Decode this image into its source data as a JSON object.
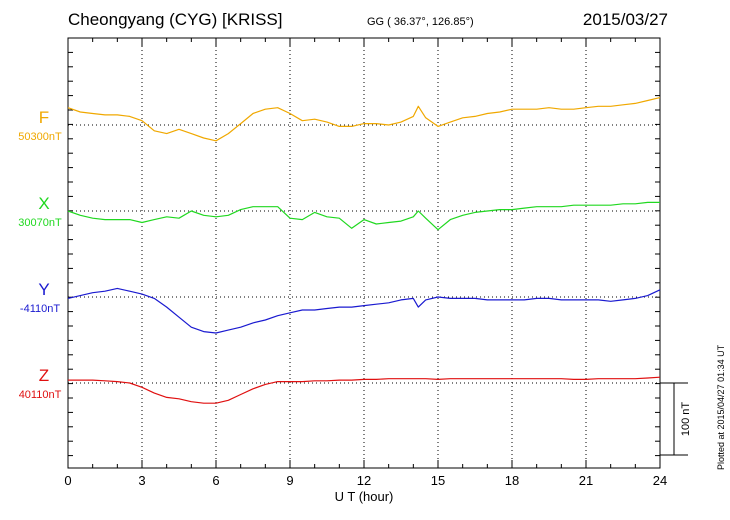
{
  "header": {
    "title": "Cheongyang (CYG)  [KRISS]",
    "coordinates": "GG ( 36.37°, 126.85°)",
    "date": "2015/03/27"
  },
  "footer": {
    "plotted_note": "Plotted at 2015/04/27 01:34 UT"
  },
  "colors": {
    "F": "#f0a800",
    "X": "#20d820",
    "Y": "#1a1ad0",
    "Z": "#e01010",
    "axis": "#000000",
    "grid": "#000000"
  },
  "chart_data": {
    "type": "line",
    "xlabel": "U T (hour)",
    "xlim": [
      0,
      24
    ],
    "xticks": [
      0,
      3,
      6,
      9,
      12,
      15,
      18,
      21,
      24
    ],
    "grid": true,
    "grid_style": "dotted",
    "scale_bar": {
      "label": "100 nT",
      "value_nT": 100
    },
    "series": [
      {
        "name": "F",
        "baseline_label": "50300nT",
        "baseline": 50300,
        "x": [
          0,
          0.5,
          1,
          1.5,
          2,
          2.5,
          3,
          3.5,
          4,
          4.5,
          5,
          5.5,
          6,
          6.5,
          7,
          7.5,
          8,
          8.5,
          9,
          9.5,
          10,
          10.5,
          11,
          11.5,
          12,
          12.5,
          13,
          13.5,
          14,
          14.2,
          14.5,
          15,
          15.5,
          16,
          16.5,
          17,
          17.5,
          18,
          18.5,
          19,
          19.5,
          20,
          20.5,
          21,
          21.5,
          22,
          22.5,
          23,
          23.5,
          24
        ],
        "values": [
          50324,
          50318,
          50316,
          50314,
          50314,
          50312,
          50306,
          50292,
          50288,
          50294,
          50288,
          50282,
          50278,
          50288,
          50302,
          50316,
          50322,
          50324,
          50316,
          50306,
          50308,
          50304,
          50298,
          50298,
          50302,
          50302,
          50300,
          50304,
          50312,
          50326,
          50310,
          50298,
          50304,
          50310,
          50312,
          50316,
          50318,
          50322,
          50322,
          50322,
          50324,
          50322,
          50322,
          50324,
          50326,
          50326,
          50328,
          50330,
          50334,
          50338
        ]
      },
      {
        "name": "X",
        "baseline_label": "30070nT",
        "baseline": 30070,
        "x": [
          0,
          0.5,
          1,
          1.5,
          2,
          2.5,
          3,
          3.5,
          4,
          4.5,
          5,
          5.5,
          6,
          6.5,
          7,
          7.5,
          8,
          8.5,
          9,
          9.5,
          10,
          10.5,
          11,
          11.5,
          12,
          12.5,
          13,
          13.5,
          14,
          14.2,
          14.5,
          15,
          15.5,
          16,
          16.5,
          17,
          17.5,
          18,
          18.5,
          19,
          19.5,
          20,
          20.5,
          21,
          21.5,
          22,
          22.5,
          23,
          23.5,
          24
        ],
        "values": [
          30070,
          30064,
          30060,
          30058,
          30058,
          30058,
          30054,
          30058,
          30062,
          30060,
          30070,
          30064,
          30062,
          30064,
          30072,
          30076,
          30076,
          30076,
          30060,
          30058,
          30068,
          30062,
          30060,
          30046,
          30058,
          30052,
          30054,
          30056,
          30062,
          30070,
          30060,
          30044,
          30058,
          30064,
          30068,
          30070,
          30072,
          30072,
          30074,
          30076,
          30076,
          30076,
          30078,
          30078,
          30078,
          30078,
          30080,
          30080,
          30082,
          30082
        ]
      },
      {
        "name": "Y",
        "baseline_label": "-4110nT",
        "baseline": -4110,
        "x": [
          0,
          0.5,
          1,
          1.5,
          2,
          2.5,
          3,
          3.5,
          4,
          4.5,
          5,
          5.5,
          6,
          6.5,
          7,
          7.5,
          8,
          8.5,
          9,
          9.5,
          10,
          10.5,
          11,
          11.5,
          12,
          12.5,
          13,
          13.5,
          14,
          14.2,
          14.5,
          15,
          15.5,
          16,
          16.5,
          17,
          17.5,
          18,
          18.5,
          19,
          19.5,
          20,
          20.5,
          21,
          21.5,
          22,
          22.5,
          23,
          23.5,
          24
        ],
        "values": [
          -4112,
          -4108,
          -4104,
          -4102,
          -4098,
          -4102,
          -4106,
          -4112,
          -4124,
          -4138,
          -4152,
          -4158,
          -4160,
          -4156,
          -4152,
          -4146,
          -4142,
          -4136,
          -4132,
          -4128,
          -4128,
          -4126,
          -4124,
          -4124,
          -4122,
          -4120,
          -4118,
          -4114,
          -4112,
          -4124,
          -4114,
          -4110,
          -4112,
          -4112,
          -4112,
          -4114,
          -4114,
          -4114,
          -4114,
          -4112,
          -4112,
          -4114,
          -4114,
          -4114,
          -4114,
          -4116,
          -4114,
          -4112,
          -4108,
          -4100
        ]
      },
      {
        "name": "Z",
        "baseline_label": "40110nT",
        "baseline": 40110,
        "x": [
          0,
          0.5,
          1,
          1.5,
          2,
          2.5,
          3,
          3.5,
          4,
          4.5,
          5,
          5.5,
          6,
          6.5,
          7,
          7.5,
          8,
          8.5,
          9,
          9.5,
          10,
          10.5,
          11,
          11.5,
          12,
          12.5,
          13,
          13.5,
          14,
          14.2,
          14.5,
          15,
          15.5,
          16,
          16.5,
          17,
          17.5,
          18,
          18.5,
          19,
          19.5,
          20,
          20.5,
          21,
          21.5,
          22,
          22.5,
          23,
          23.5,
          24
        ],
        "values": [
          40114,
          40114,
          40114,
          40113,
          40112,
          40110,
          40104,
          40096,
          40090,
          40088,
          40084,
          40082,
          40082,
          40086,
          40094,
          40102,
          40108,
          40112,
          40112,
          40112,
          40113,
          40113,
          40114,
          40114,
          40115,
          40115,
          40116,
          40116,
          40116,
          40116,
          40116,
          40115,
          40116,
          40116,
          40116,
          40116,
          40116,
          40116,
          40116,
          40116,
          40116,
          40116,
          40115,
          40115,
          40116,
          40116,
          40116,
          40116,
          40117,
          40118
        ]
      }
    ]
  }
}
